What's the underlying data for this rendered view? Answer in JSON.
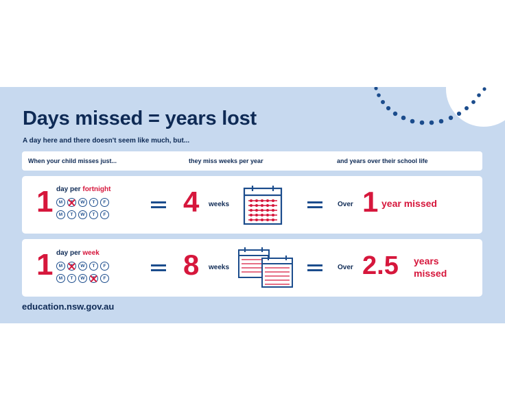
{
  "title": "Days missed = years lost",
  "subtitle": "A day here and there doesn't seem like much, but...",
  "header": {
    "col1": "When your child misses just...",
    "col2": "they miss weeks per year",
    "col3": "and years over their school life"
  },
  "rows": [
    {
      "count": "1",
      "label_prefix": "day per",
      "label_freq": "fortnight",
      "week1": [
        "M",
        "T",
        "W",
        "T",
        "F"
      ],
      "week1_missed": [
        false,
        true,
        false,
        false,
        false
      ],
      "week2": [
        "M",
        "T",
        "W",
        "T",
        "F"
      ],
      "week2_missed": [
        false,
        false,
        false,
        false,
        false
      ],
      "weeks_value": "4",
      "weeks_label": "weeks",
      "over": "Over",
      "years_value": "1",
      "years_label": "year missed"
    },
    {
      "count": "1",
      "label_prefix": "day per",
      "label_freq": "week",
      "week1": [
        "M",
        "T",
        "W",
        "T",
        "F"
      ],
      "week1_missed": [
        false,
        true,
        false,
        false,
        false
      ],
      "week2": [
        "M",
        "T",
        "W",
        "T",
        "F"
      ],
      "week2_missed": [
        false,
        false,
        false,
        true,
        false
      ],
      "weeks_value": "8",
      "weeks_label": "weeks",
      "over": "Over",
      "years_value": "2.5",
      "years_label_1": "years",
      "years_label_2": "missed"
    }
  ],
  "footer_url": "education.nsw.gov.au",
  "colors": {
    "navy": "#0e2a55",
    "red": "#d6173c",
    "panel": "#c7d9ef",
    "blue": "#1b4c8c"
  }
}
